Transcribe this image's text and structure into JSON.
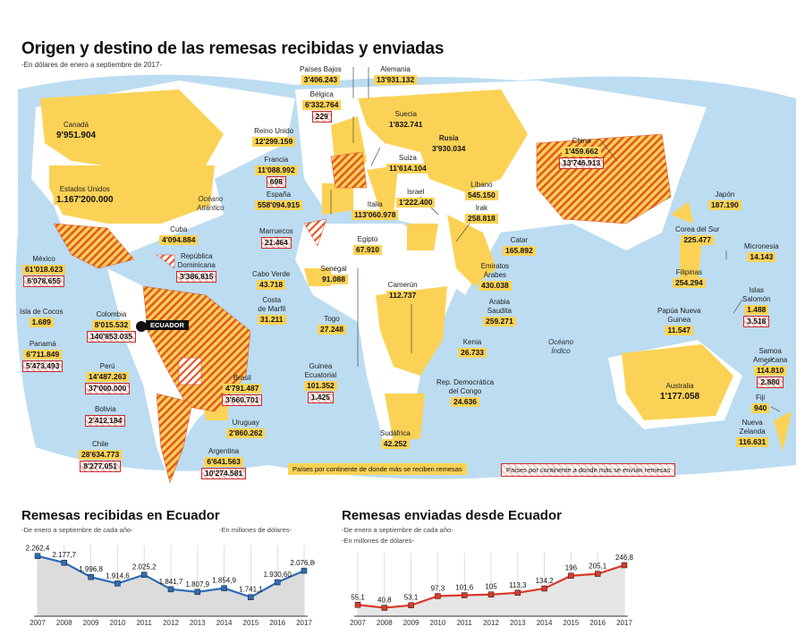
{
  "title": "Origen y destino de las remesas recibidas y enviadas",
  "subtitle": "-En dólares de enero a septiembre de 2017-",
  "oceans": {
    "pacific_atlantic": "Océano\nAtlántico",
    "indico": "Océano\nÍndico"
  },
  "ecuador_label": "ECUADOR",
  "legend": {
    "received": "Países por continente de donde más se reciben remesas",
    "sent": "Países por continente a donde más se envían remesas"
  },
  "colors": {
    "received": "#fbd255",
    "sent_stripe": "#e2572a",
    "ocean": "#bcdcf2",
    "land": "#ffffff",
    "line_received": "#2d6cb5",
    "line_sent": "#d93a2b"
  },
  "countries": {
    "canada": {
      "name": "Canadá",
      "received": "9'951.904"
    },
    "usa": {
      "name": "Estados Unidos",
      "received": "1.167'200.000"
    },
    "mexico": {
      "name": "México",
      "received": "61'018.623",
      "sent": "6'078.655"
    },
    "cuba": {
      "name": "Cuba",
      "received": "4'094.884"
    },
    "dominicana": {
      "name": "República\nDominicana",
      "sent": "3'386.815"
    },
    "cocos": {
      "name": "Isla de Cocos",
      "received": "1.689"
    },
    "colombia": {
      "name": "Colombia",
      "received": "8'015.532",
      "sent": "140'853.035"
    },
    "panama": {
      "name": "Panamá",
      "received": "6'711.849",
      "sent": "5'473.493"
    },
    "peru": {
      "name": "Perú",
      "received": "14'487.263",
      "sent": "37'000.000"
    },
    "bolivia": {
      "name": "Bolivia",
      "sent": "2'412.184"
    },
    "brasil": {
      "name": "Brasil",
      "received": "4'791.487",
      "sent": "3'660.701"
    },
    "uruguay": {
      "name": "Uruguay",
      "received": "2'860.262"
    },
    "chile": {
      "name": "Chile",
      "received": "28'634.773",
      "sent": "8'277.051"
    },
    "argentina": {
      "name": "Argentina",
      "received": "6'641.563",
      "sent": "10'274.581"
    },
    "paises_bajos": {
      "name": "Países Bajos",
      "received": "3'406.243"
    },
    "alemania": {
      "name": "Alemania",
      "received": "13'931.132"
    },
    "belgica": {
      "name": "Bélgica",
      "received": "6'332.764",
      "sent": "229"
    },
    "suecia": {
      "name": "Suecia",
      "received": "1'832.741"
    },
    "rusia": {
      "name": "Rusia",
      "received": "3'930.034"
    },
    "reino_unido": {
      "name": "Reino Unido",
      "received": "12'299.159"
    },
    "francia": {
      "name": "Francia",
      "received": "11'088.992",
      "sent": "698"
    },
    "suiza": {
      "name": "Suiza",
      "received": "11'614.104"
    },
    "espana": {
      "name": "España",
      "received": "558'094.915"
    },
    "italia": {
      "name": "Italia",
      "received": "113'060.978"
    },
    "israel": {
      "name": "Israel",
      "received": "1'222.400"
    },
    "libano": {
      "name": "Líbano",
      "received": "545.150"
    },
    "irak": {
      "name": "Irak",
      "received": "258.818"
    },
    "marruecos": {
      "name": "Marruecos",
      "sent": "21.464"
    },
    "egipto": {
      "name": "Egipto",
      "received": "67.910"
    },
    "catar": {
      "name": "Catar",
      "received": "165.892"
    },
    "emiratos": {
      "name": "Emiratos\nÁrabes",
      "received": "430.038"
    },
    "arabia": {
      "name": "Arabia\nSaudita",
      "received": "259.271"
    },
    "cabo_verde": {
      "name": "Cabo Verde",
      "received": "43.718"
    },
    "senegal": {
      "name": "Senegal",
      "received": "91.088"
    },
    "camerun": {
      "name": "Camerún",
      "received": "112.737"
    },
    "costa_marfil": {
      "name": "Costa\nde Marfil",
      "received": "31.211"
    },
    "togo": {
      "name": "Togo",
      "received": "27.248"
    },
    "kenia": {
      "name": "Kenia",
      "received": "26.733"
    },
    "guinea": {
      "name": "Guinea\nEcuatorial",
      "received": "101.352",
      "sent": "1.425"
    },
    "rdc": {
      "name": "Rep. Democrática\ndel Congo",
      "received": "24.636"
    },
    "sudafrica": {
      "name": "Sudáfrica",
      "received": "42.252"
    },
    "china": {
      "name": "China",
      "received": "1'459.662",
      "sent": "13'746.913"
    },
    "japon": {
      "name": "Japón",
      "received": "187.190"
    },
    "corea": {
      "name": "Corea del Sur",
      "received": "225.477"
    },
    "micronesia": {
      "name": "Micronesia",
      "received": "14.143"
    },
    "filipinas": {
      "name": "Filipinas",
      "received": "254.294"
    },
    "salomon": {
      "name": "Islas\nSalomón",
      "received": "1.488",
      "sent": "3.518"
    },
    "papua": {
      "name": "Papúa Nueva\nGuinea",
      "received": "11.547"
    },
    "samoa": {
      "name": "Samoa\nAmericana",
      "received": "114.810",
      "sent": "2.880"
    },
    "australia": {
      "name": "Australia",
      "received": "1'177.058"
    },
    "fiji": {
      "name": "Fiji",
      "received": "940"
    },
    "nueva_zelanda": {
      "name": "Nueva\nZelanda",
      "received": "116.631"
    }
  },
  "charts": {
    "received": {
      "title": "Remesas recibidas en Ecuador",
      "sub1": "-De enero a septiembre de cada año-",
      "sub2": "-En millones de dólares-"
    },
    "sent": {
      "title": "Remesas enviadas desde Ecuador",
      "sub1": "-De enero a septiembre de cada año-",
      "sub2": "-En millones de dólares-"
    }
  },
  "chart_data": [
    {
      "type": "area",
      "title": "Remesas recibidas en Ecuador",
      "categories": [
        "2007",
        "2008",
        "2009",
        "2010",
        "2011",
        "2012",
        "2013",
        "2014",
        "2015",
        "2016",
        "2017"
      ],
      "values": [
        2262.4,
        2177.7,
        1996.8,
        1914.6,
        2025.2,
        1841.7,
        1807.9,
        1854.9,
        1741.1,
        1930.6,
        2076.8
      ],
      "labels": [
        "2.262,4",
        "2.177,7",
        "1.996,8",
        "1.914,6",
        "2.025,2",
        "1.841,7",
        "1.807,9",
        "1.854,9",
        "1.741,1",
        "1.930,60",
        "2.076,80"
      ],
      "ylim": [
        1500,
        2350
      ],
      "grid": true
    },
    {
      "type": "area",
      "title": "Remesas enviadas desde Ecuador",
      "categories": [
        "2007",
        "2008",
        "2009",
        "2010",
        "2011",
        "2012",
        "2013",
        "2014",
        "2015",
        "2016",
        "2017"
      ],
      "values": [
        55.1,
        40.8,
        53.1,
        97.3,
        101.6,
        105,
        113.3,
        134.2,
        196,
        205.1,
        246.8
      ],
      "labels": [
        "55,1",
        "40,8",
        "53,1",
        "97,3",
        "101,6",
        "105",
        "113,3",
        "134,2",
        "196",
        "205,1",
        "246,8"
      ],
      "ylim": [
        0,
        290
      ],
      "grid": true
    }
  ]
}
